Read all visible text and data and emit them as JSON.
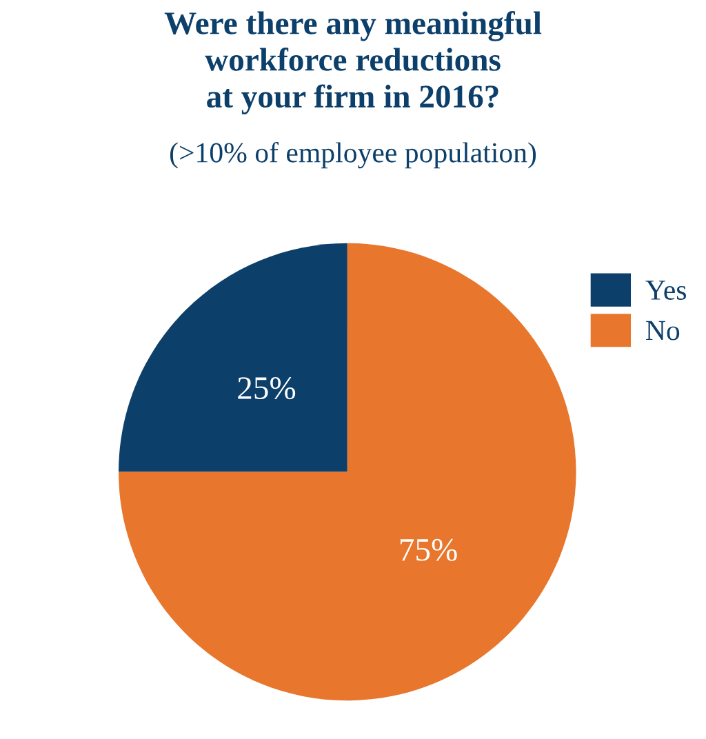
{
  "chart_data": {
    "type": "pie",
    "title": "Were there any meaningful\nworkforce reductions\nat your firm in 2016?",
    "subtitle": "(>10% of employee population)",
    "categories": [
      "Yes",
      "No"
    ],
    "values": [
      25,
      75
    ],
    "colors": [
      "#0c3f6a",
      "#e8762c"
    ],
    "value_labels": [
      "25%",
      "75%"
    ],
    "legend": "top right"
  }
}
